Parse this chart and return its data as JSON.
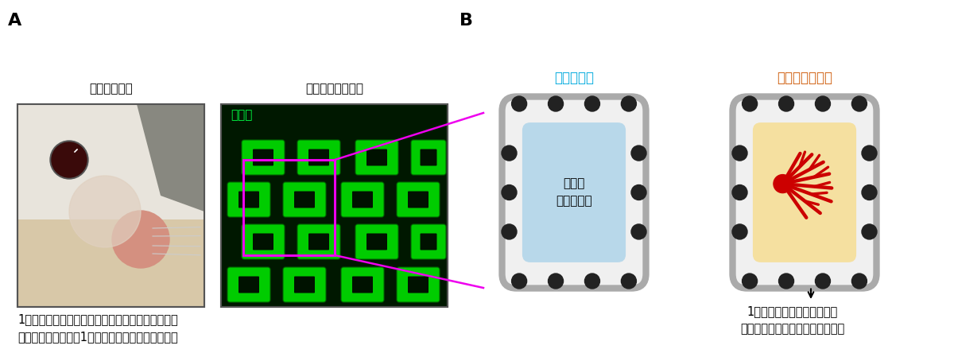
{
  "fig_width": 12.0,
  "fig_height": 4.54,
  "dpi": 100,
  "bg_color": "#ffffff",
  "label_A": "A",
  "label_B": "B",
  "photo_title1": "マウスのヒゲ",
  "photo_title2": "大脳皮質バレル野",
  "barrel_label": "バレル",
  "caption_A": "1本のヒゲからの感覚情報は大脳皮質バレル野へと\n伝達され、対応する1つのバレルだけに入力する。",
  "caption_B": "1つのバレルだけに向かって\n樹状突起を伸ばす「非対称」な形",
  "label_left_barrel": "隣のバレル",
  "label_right_barrel": "対応するバレル",
  "gray_border": "#aaaaaa",
  "dark_dot": "#222222",
  "blue_fill": "#b8d8ea",
  "orange_fill": "#f5e0a0",
  "red_color": "#cc0000",
  "cyan_color": "#00aadd",
  "orange_color": "#d06010",
  "center_text_left": "軸索が\n集まる領域"
}
